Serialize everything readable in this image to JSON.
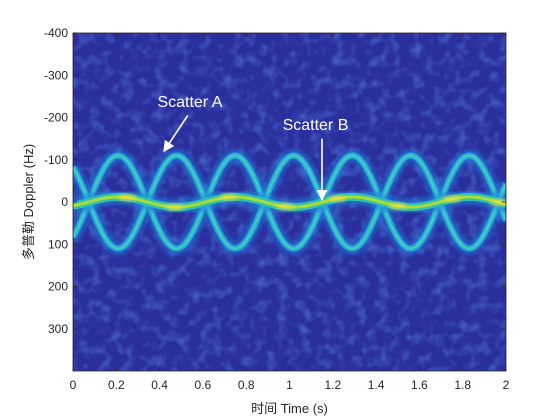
{
  "chart_data": {
    "type": "heatmap",
    "title": "",
    "xlabel": "时间 Time (s)",
    "ylabel": "多普勒 Doppler (Hz)",
    "xlim": [
      0,
      2
    ],
    "ylim": [
      -400,
      400
    ],
    "y_reversed": true,
    "x_ticks": [
      "0",
      "0.2",
      "0.4",
      "0.6",
      "0.8",
      "1",
      "1.2",
      "1.4",
      "1.6",
      "1.8",
      "2"
    ],
    "y_ticks": [
      "-400",
      "-300",
      "-200",
      "-100",
      "0",
      "100",
      "200",
      "300"
    ],
    "x_tick_values": [
      0,
      0.2,
      0.4,
      0.6,
      0.8,
      1.0,
      1.2,
      1.4,
      1.6,
      1.8,
      2.0
    ],
    "y_tick_values": [
      -400,
      -300,
      -200,
      -100,
      0,
      100,
      200,
      300
    ],
    "colormap": "parula",
    "background_color": "#2b2f9e",
    "series": [
      {
        "name": "Scatter A",
        "model": "doppler = -A*sin(2*pi*f*t + phase)",
        "amplitude_hz": 110,
        "frequency_hz": 1.85,
        "phase_rad": -0.85
      },
      {
        "name": "Scatter B",
        "model": "doppler = -A*sin(2*pi*f*t + phase)",
        "amplitude_hz": 12,
        "frequency_hz": 1.85,
        "phase_rad": -0.85
      }
    ],
    "annotations": [
      {
        "text": "Scatter A",
        "text_at": [
          0.54,
          -225
        ],
        "arrow_from": [
          0.53,
          -205
        ],
        "arrow_to": [
          0.42,
          -120
        ]
      },
      {
        "text": "Scatter B",
        "text_at": [
          1.12,
          -170
        ],
        "arrow_from": [
          1.15,
          -150
        ],
        "arrow_to": [
          1.15,
          -5
        ]
      }
    ]
  }
}
